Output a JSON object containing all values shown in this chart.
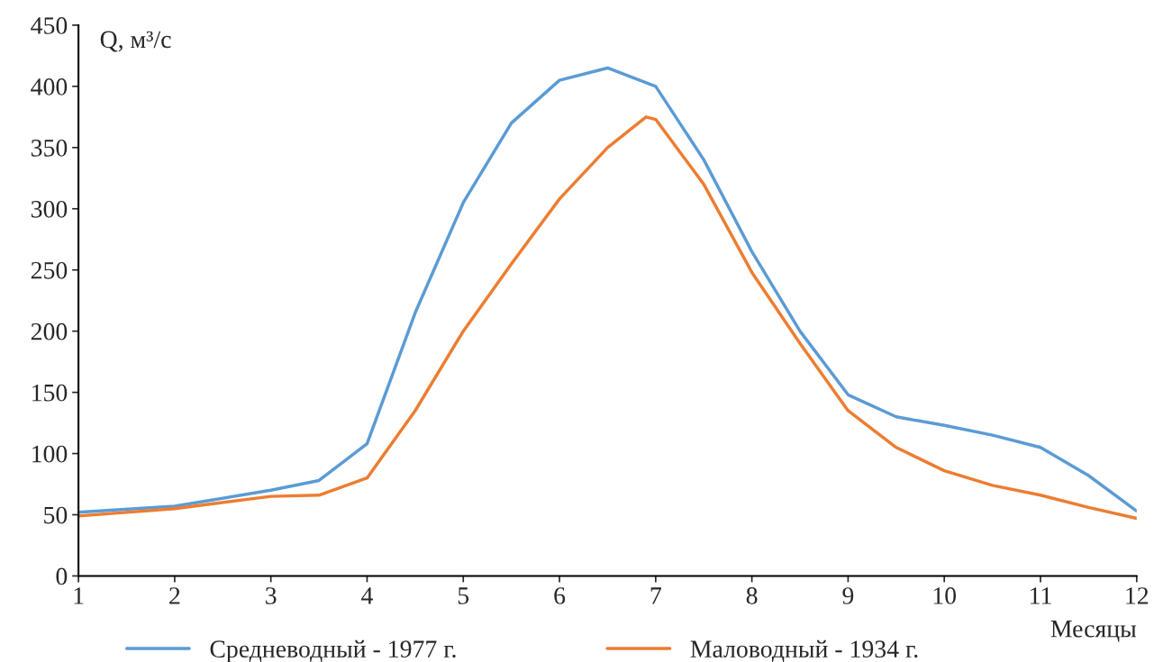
{
  "chart_data": {
    "type": "line",
    "xlabel": "Месяцы",
    "ylabel": "Q, м³/с",
    "xlim": [
      1,
      12
    ],
    "ylim": [
      0,
      450
    ],
    "xticks": [
      1,
      2,
      3,
      4,
      5,
      6,
      7,
      8,
      9,
      10,
      11,
      12
    ],
    "yticks": [
      0,
      50,
      100,
      150,
      200,
      250,
      300,
      350,
      400,
      450
    ],
    "grid": false,
    "legend": "bottom",
    "line_style": "solid",
    "series": [
      {
        "name": "Средневодный - 1977 г.",
        "color": "#5b9bd5",
        "x": [
          1,
          2,
          3,
          3.5,
          4,
          4.5,
          5,
          5.5,
          6,
          6.5,
          7,
          7.5,
          8,
          8.5,
          9,
          9.5,
          10,
          10.5,
          11,
          11.5,
          12
        ],
        "values": [
          52,
          57,
          70,
          78,
          108,
          215,
          305,
          370,
          405,
          415,
          400,
          340,
          265,
          200,
          148,
          130,
          123,
          115,
          105,
          82,
          53
        ]
      },
      {
        "name": "Маловодный - 1934 г.",
        "color": "#ed7d31",
        "x": [
          1,
          2,
          3,
          3.5,
          4,
          4.5,
          5,
          5.5,
          6,
          6.5,
          6.9,
          7,
          7.5,
          8,
          8.5,
          9,
          9.5,
          10,
          10.5,
          11,
          11.5,
          12
        ],
        "values": [
          49,
          55,
          65,
          66,
          80,
          135,
          200,
          255,
          308,
          350,
          375,
          373,
          320,
          248,
          190,
          135,
          105,
          86,
          74,
          66,
          56,
          47
        ]
      }
    ]
  }
}
